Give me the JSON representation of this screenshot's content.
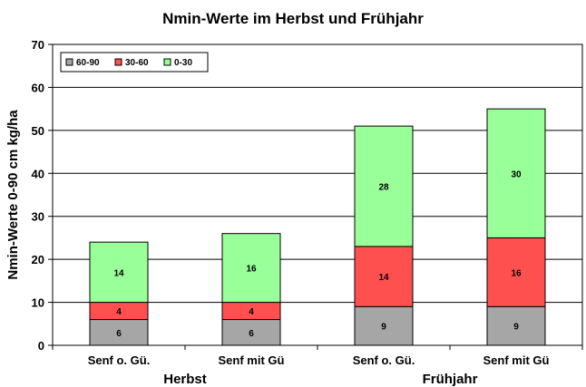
{
  "chart_data": {
    "type": "bar",
    "stacked": true,
    "title": "Nmin-Werte im Herbst und Frühjahr",
    "xlabel": "",
    "ylabel": "Nmin-Werte 0-90 cm kg/ha",
    "ylim": [
      0,
      70
    ],
    "yticks": [
      0,
      10,
      20,
      30,
      40,
      50,
      60,
      70
    ],
    "grid": true,
    "legend_position": "top-left",
    "categories": [
      "Senf o. Gü.",
      "Senf mit Gü",
      "Senf o. Gü.",
      "Senf mit Gü"
    ],
    "groups": [
      {
        "label": "Herbst",
        "categories": [
          0,
          1
        ]
      },
      {
        "label": "Frühjahr",
        "categories": [
          2,
          3
        ]
      }
    ],
    "series": [
      {
        "name": "60-90",
        "color": "#A6A6A6",
        "values": [
          6,
          6,
          9,
          9
        ]
      },
      {
        "name": "30-60",
        "color": "#FF5050",
        "values": [
          4,
          4,
          14,
          16
        ]
      },
      {
        "name": "0-30",
        "color": "#99FF99",
        "values": [
          14,
          16,
          28,
          30
        ]
      }
    ]
  }
}
